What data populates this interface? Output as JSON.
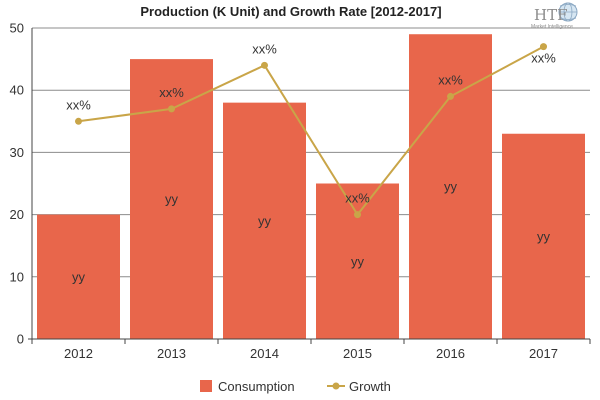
{
  "logo": {
    "text": "HTF",
    "subtext": "Market Intelligence",
    "color": "#8c8c8c"
  },
  "chart_data": {
    "type": "bar",
    "title": "Production (K Unit) and Growth Rate [2012-2017]",
    "categories": [
      "2012",
      "2013",
      "2014",
      "2015",
      "2016",
      "2017"
    ],
    "ylim": [
      0,
      50
    ],
    "yticks": [
      0,
      10,
      20,
      30,
      40,
      50
    ],
    "grid": true,
    "legend_position": "bottom",
    "series": [
      {
        "name": "Consumption",
        "type": "bar",
        "color": "#e8664b",
        "values": [
          20,
          45,
          38,
          25,
          49,
          33
        ],
        "labels": [
          "yy",
          "yy",
          "yy",
          "yy",
          "yy",
          "yy"
        ]
      },
      {
        "name": "Growth",
        "type": "line",
        "color": "#c9a548",
        "values": [
          35,
          37,
          44,
          20,
          39,
          47
        ],
        "labels": [
          "xx%",
          "xx%",
          "xx%",
          "xx%",
          "xx%",
          "xx%"
        ]
      }
    ]
  }
}
